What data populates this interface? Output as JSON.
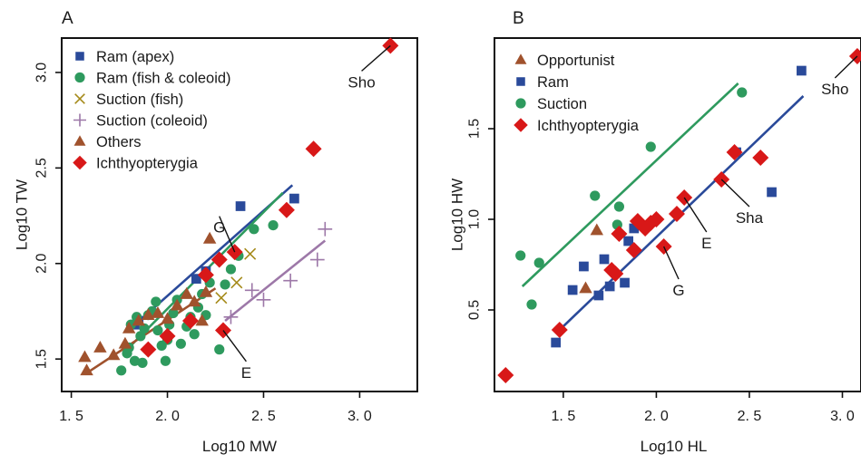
{
  "chart_data": [
    {
      "type": "scatter",
      "panel_label": "A",
      "xlabel": "Log10  MW",
      "ylabel": "Log10  TW",
      "xlim": [
        1.45,
        3.3
      ],
      "ylim": [
        1.33,
        3.18
      ],
      "xticks": [
        1.5,
        2.0,
        2.5,
        3.0
      ],
      "xtick_labels": [
        "1. 5",
        "2. 0",
        "2. 5",
        "3. 0"
      ],
      "yticks": [
        1.5,
        2.0,
        2.5,
        3.0
      ],
      "ytick_labels": [
        "1.5",
        "2.0",
        "2.5",
        "3.0"
      ],
      "legend_position": "top-left",
      "series": [
        {
          "name": "Ram (apex)",
          "marker": "square",
          "color": "#2a4a9a",
          "points": [
            [
              1.83,
              1.68
            ],
            [
              1.85,
              1.7
            ],
            [
              2.15,
              1.92
            ],
            [
              2.2,
              1.96
            ],
            [
              2.38,
              2.3
            ],
            [
              2.66,
              2.34
            ]
          ]
        },
        {
          "name": "Ram (fish & coleoid)",
          "marker": "circle",
          "color": "#2e9a5e",
          "points": [
            [
              1.76,
              1.44
            ],
            [
              1.79,
              1.53
            ],
            [
              1.8,
              1.56
            ],
            [
              1.81,
              1.68
            ],
            [
              1.83,
              1.49
            ],
            [
              1.84,
              1.72
            ],
            [
              1.86,
              1.62
            ],
            [
              1.87,
              1.48
            ],
            [
              1.88,
              1.66
            ],
            [
              1.9,
              1.73
            ],
            [
              1.92,
              1.75
            ],
            [
              1.94,
              1.8
            ],
            [
              1.95,
              1.65
            ],
            [
              1.97,
              1.57
            ],
            [
              1.99,
              1.49
            ],
            [
              2.0,
              1.6
            ],
            [
              2.01,
              1.68
            ],
            [
              2.03,
              1.74
            ],
            [
              2.05,
              1.81
            ],
            [
              2.07,
              1.58
            ],
            [
              2.1,
              1.67
            ],
            [
              2.12,
              1.72
            ],
            [
              2.14,
              1.63
            ],
            [
              2.16,
              1.77
            ],
            [
              2.18,
              1.84
            ],
            [
              2.2,
              1.73
            ],
            [
              2.22,
              1.9
            ],
            [
              2.3,
              1.89
            ],
            [
              2.33,
              1.97
            ],
            [
              2.37,
              2.04
            ],
            [
              2.45,
              2.18
            ],
            [
              2.55,
              2.2
            ],
            [
              2.27,
              1.55
            ]
          ]
        },
        {
          "name": "Suction (fish)",
          "marker": "x",
          "color": "#a58a1a",
          "points": [
            [
              2.28,
              1.82
            ],
            [
              2.36,
              1.9
            ],
            [
              2.43,
              2.05
            ]
          ]
        },
        {
          "name": "Suction (coleoid)",
          "marker": "plus",
          "color": "#9d78a8",
          "points": [
            [
              2.33,
              1.72
            ],
            [
              2.44,
              1.86
            ],
            [
              2.5,
              1.81
            ],
            [
              2.64,
              1.91
            ],
            [
              2.78,
              2.02
            ],
            [
              2.82,
              2.18
            ]
          ]
        },
        {
          "name": "Others",
          "marker": "triangle",
          "color": "#a0522d",
          "points": [
            [
              1.57,
              1.51
            ],
            [
              1.58,
              1.44
            ],
            [
              1.65,
              1.56
            ],
            [
              1.72,
              1.52
            ],
            [
              1.78,
              1.58
            ],
            [
              1.8,
              1.66
            ],
            [
              1.85,
              1.7
            ],
            [
              1.9,
              1.73
            ],
            [
              1.95,
              1.74
            ],
            [
              2.0,
              1.71
            ],
            [
              2.05,
              1.78
            ],
            [
              2.1,
              1.84
            ],
            [
              2.14,
              1.8
            ],
            [
              2.18,
              1.7
            ],
            [
              2.2,
              1.85
            ],
            [
              2.22,
              2.13
            ]
          ]
        },
        {
          "name": "Ichthyopterygia",
          "marker": "diamond",
          "color": "#d81818",
          "points": [
            [
              1.9,
              1.55
            ],
            [
              2.0,
              1.62
            ],
            [
              2.12,
              1.7
            ],
            [
              2.2,
              1.94
            ],
            [
              2.27,
              2.02
            ],
            [
              2.29,
              1.65
            ],
            [
              2.35,
              2.06
            ],
            [
              2.62,
              2.28
            ],
            [
              2.76,
              2.6
            ],
            [
              3.16,
              3.14
            ]
          ]
        }
      ],
      "fit_lines": [
        {
          "color": "#2a4a9a",
          "from": [
            1.82,
            1.67
          ],
          "to": [
            2.65,
            2.41
          ]
        },
        {
          "color": "#2e9a5e",
          "from": [
            1.78,
            1.54
          ],
          "to": [
            2.6,
            2.37
          ]
        },
        {
          "color": "#9d78a8",
          "from": [
            2.3,
            1.7
          ],
          "to": [
            2.82,
            2.12
          ]
        },
        {
          "color": "#a0522d",
          "from": [
            1.57,
            1.42
          ],
          "to": [
            2.25,
            1.87
          ]
        }
      ],
      "annotations": [
        {
          "text": "Sho",
          "at": [
            3.16,
            3.14
          ],
          "label": [
            3.01,
            2.96
          ]
        },
        {
          "text": "G",
          "at": [
            2.35,
            2.06
          ],
          "label": [
            2.27,
            2.2
          ]
        },
        {
          "text": "E",
          "at": [
            2.29,
            1.65
          ],
          "label": [
            2.41,
            1.44
          ]
        }
      ]
    },
    {
      "type": "scatter",
      "panel_label": "B",
      "xlabel": "Log10  HL",
      "ylabel": "Log10  HW",
      "xlim": [
        1.13,
        3.1
      ],
      "ylim": [
        0.05,
        2.0
      ],
      "xticks": [
        1.5,
        2.0,
        2.5,
        3.0
      ],
      "xtick_labels": [
        "1. 5",
        "2. 0",
        "2. 5",
        "3. 0"
      ],
      "yticks": [
        0.5,
        1.0,
        1.5
      ],
      "ytick_labels": [
        "0.5",
        "1.0",
        "1.5"
      ],
      "legend_position": "top-left",
      "series": [
        {
          "name": "Opportunist",
          "marker": "triangle",
          "color": "#a0522d",
          "points": [
            [
              1.62,
              0.62
            ],
            [
              1.68,
              0.94
            ]
          ]
        },
        {
          "name": "Ram",
          "marker": "square",
          "color": "#2a4a9a",
          "points": [
            [
              1.46,
              0.32
            ],
            [
              1.55,
              0.61
            ],
            [
              1.61,
              0.74
            ],
            [
              1.69,
              0.58
            ],
            [
              1.72,
              0.78
            ],
            [
              1.75,
              0.63
            ],
            [
              1.83,
              0.65
            ],
            [
              1.85,
              0.88
            ],
            [
              1.88,
              0.95
            ],
            [
              2.43,
              1.37
            ],
            [
              2.62,
              1.15
            ],
            [
              2.78,
              1.82
            ]
          ]
        },
        {
          "name": "Suction",
          "marker": "circle",
          "color": "#2e9a5e",
          "points": [
            [
              1.27,
              0.8
            ],
            [
              1.33,
              0.53
            ],
            [
              1.37,
              0.76
            ],
            [
              1.67,
              1.13
            ],
            [
              1.79,
              0.97
            ],
            [
              1.8,
              1.07
            ],
            [
              1.97,
              1.4
            ],
            [
              2.46,
              1.7
            ]
          ]
        },
        {
          "name": "Ichthyopterygia",
          "marker": "diamond",
          "color": "#d81818",
          "points": [
            [
              1.19,
              0.14
            ],
            [
              1.48,
              0.39
            ],
            [
              1.76,
              0.72
            ],
            [
              1.78,
              0.7
            ],
            [
              1.8,
              0.92
            ],
            [
              1.88,
              0.83
            ],
            [
              1.9,
              0.99
            ],
            [
              1.94,
              0.95
            ],
            [
              1.97,
              0.98
            ],
            [
              2.0,
              1.0
            ],
            [
              2.04,
              0.85
            ],
            [
              2.11,
              1.03
            ],
            [
              2.15,
              1.12
            ],
            [
              2.35,
              1.22
            ],
            [
              2.42,
              1.37
            ],
            [
              2.56,
              1.34
            ],
            [
              3.08,
              1.9
            ]
          ]
        }
      ],
      "fit_lines": [
        {
          "color": "#2e9a5e",
          "from": [
            1.28,
            0.63
          ],
          "to": [
            2.44,
            1.75
          ]
        },
        {
          "color": "#2a4a9a",
          "from": [
            1.46,
            0.37
          ],
          "to": [
            2.79,
            1.68
          ]
        }
      ],
      "annotations": [
        {
          "text": "Sho",
          "at": [
            3.08,
            1.9
          ],
          "label": [
            2.96,
            1.73
          ]
        },
        {
          "text": "Sha",
          "at": [
            2.35,
            1.22
          ],
          "label": [
            2.5,
            1.02
          ]
        },
        {
          "text": "E",
          "at": [
            2.15,
            1.12
          ],
          "label": [
            2.27,
            0.88
          ]
        },
        {
          "text": "G",
          "at": [
            2.04,
            0.85
          ],
          "label": [
            2.12,
            0.62
          ]
        }
      ]
    }
  ]
}
